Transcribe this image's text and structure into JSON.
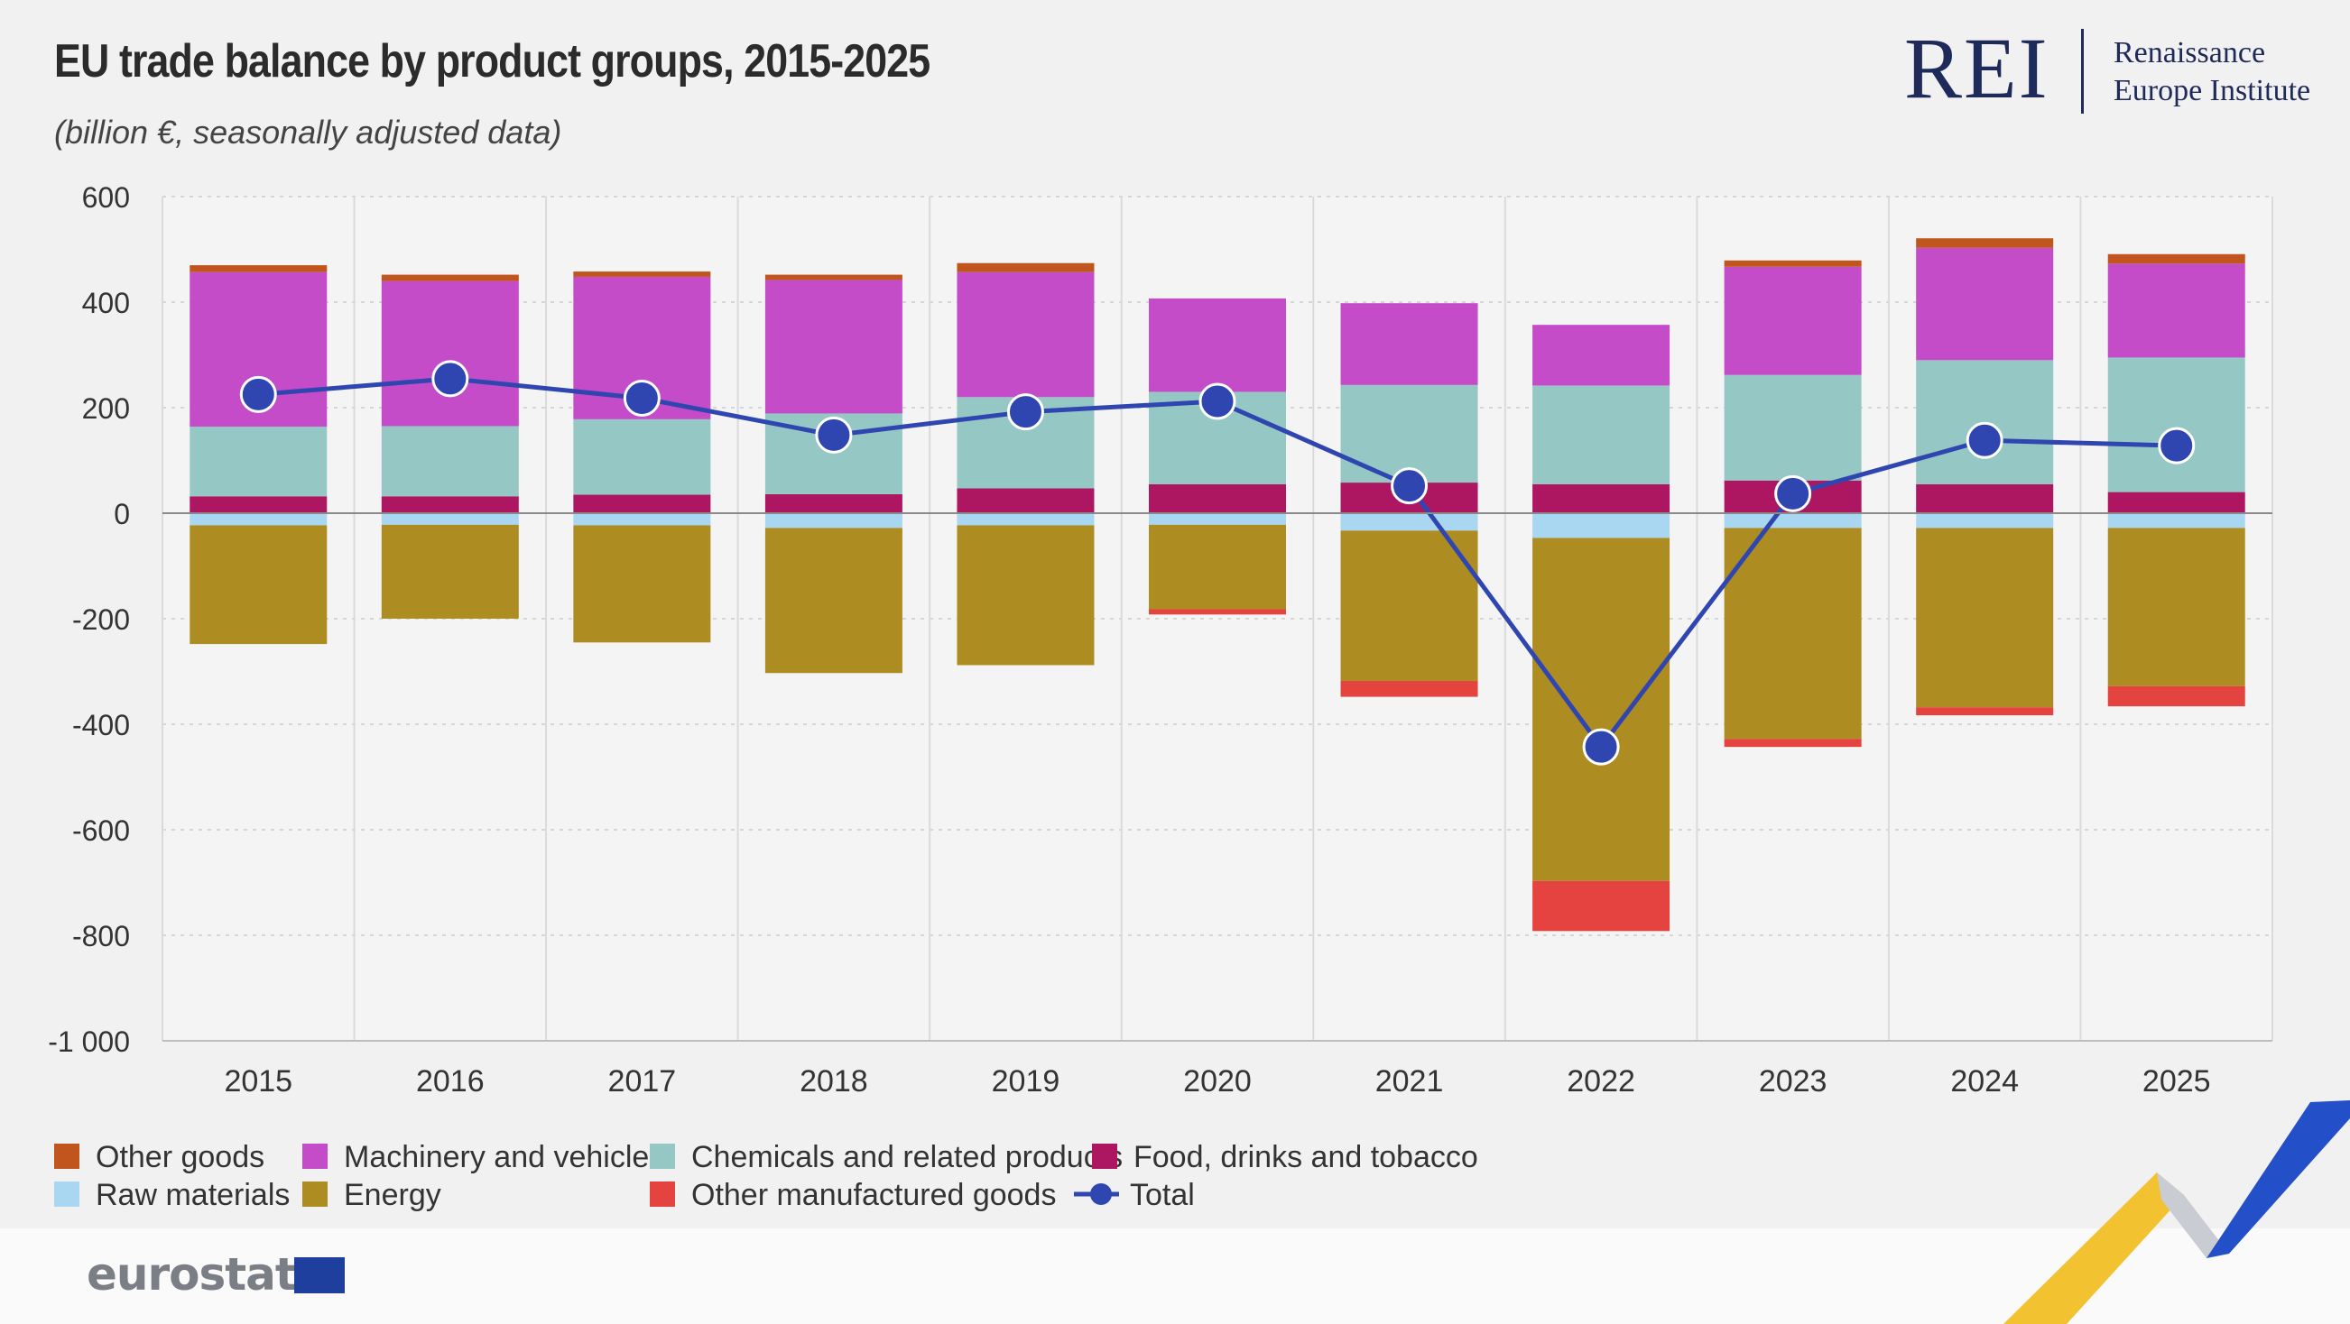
{
  "header": {
    "title": "EU trade balance by product groups, 2015-2025",
    "subtitle": "(billion €, seasonally adjusted data)"
  },
  "branding": {
    "logo_mark": "REI",
    "logo_name_line1": "Renaissance",
    "logo_name_line2": "Europe Institute",
    "source_logo": "eurostat"
  },
  "colors": {
    "Other goods": "#c0561e",
    "Machinery and vehicles": "#c44cc8",
    "Chemicals and related products": "#95c8c4",
    "Food, drinks and tobacco": "#ad1761",
    "Raw materials": "#a9d6f0",
    "Energy": "#ad8d22",
    "Other manufactured goods": "#e4433f",
    "Total": "#2f46b0"
  },
  "chart_data": {
    "type": "bar",
    "stacked": true,
    "title": "EU trade balance by product groups, 2015-2025",
    "subtitle": "(billion €, seasonally adjusted data)",
    "categories": [
      "2015",
      "2016",
      "2017",
      "2018",
      "2019",
      "2020",
      "2021",
      "2022",
      "2023",
      "2024",
      "2025"
    ],
    "ylim": [
      -1000,
      600
    ],
    "yticks": [
      600,
      400,
      200,
      0,
      -200,
      -400,
      -600,
      -800,
      -1000
    ],
    "ytick_labels": [
      "600",
      "400",
      "200",
      "0",
      "-200",
      "-400",
      "-600",
      "-800",
      "-1 000"
    ],
    "grid": true,
    "legend_position": "bottom",
    "series": [
      {
        "name": "Food, drinks and tobacco",
        "values": [
          32,
          32,
          35,
          36,
          47,
          55,
          58,
          55,
          62,
          55,
          40
        ]
      },
      {
        "name": "Chemicals and related products",
        "values": [
          132,
          133,
          143,
          153,
          173,
          175,
          185,
          187,
          200,
          235,
          255
        ]
      },
      {
        "name": "Machinery and vehicles",
        "values": [
          293,
          275,
          270,
          253,
          237,
          177,
          155,
          115,
          205,
          213,
          178
        ]
      },
      {
        "name": "Other goods",
        "values": [
          13,
          12,
          10,
          10,
          17,
          0,
          0,
          0,
          12,
          18,
          18
        ]
      },
      {
        "name": "Raw materials",
        "values": [
          -23,
          -22,
          -23,
          -28,
          -23,
          -22,
          -33,
          -47,
          -28,
          -28,
          -28
        ]
      },
      {
        "name": "Energy",
        "values": [
          -225,
          -178,
          -222,
          -275,
          -265,
          -160,
          -285,
          -650,
          -400,
          -340,
          -300
        ]
      },
      {
        "name": "Other manufactured goods",
        "values": [
          0,
          0,
          0,
          0,
          0,
          -10,
          -30,
          -95,
          -15,
          -15,
          -38
        ]
      },
      {
        "name": "Total",
        "type": "line",
        "values": [
          225,
          255,
          218,
          148,
          192,
          212,
          52,
          -443,
          37,
          138,
          128
        ]
      }
    ],
    "legend": [
      "Other goods",
      "Machinery and vehicles",
      "Chemicals and related products",
      "Food, drinks and tobacco",
      "Raw materials",
      "Energy",
      "Other manufactured goods",
      "Total"
    ]
  }
}
